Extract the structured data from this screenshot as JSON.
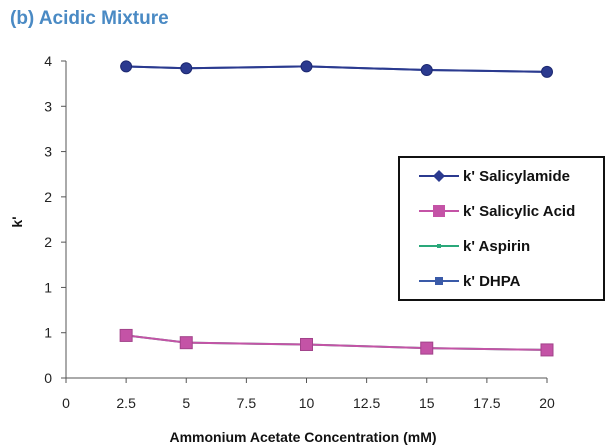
{
  "chart_data": {
    "type": "line",
    "title": "(b) Acidic Mixture",
    "xlabel": "Ammonium Acetate Concentration (mM)",
    "ylabel": "k'",
    "x_ticks": [
      "0",
      "2.5",
      "5",
      "7.5",
      "10",
      "12.5",
      "15",
      "17.5",
      "20"
    ],
    "y_tick_values": [
      0,
      0.5,
      1,
      1.5,
      2,
      2.5,
      3,
      3.5
    ],
    "y_ticks": [
      "0",
      "1",
      "1",
      "2",
      "2",
      "3",
      "3",
      "4"
    ],
    "xlim": [
      0,
      20
    ],
    "ylim": [
      0,
      3.5
    ],
    "grid": false,
    "legend_position": "right",
    "x": [
      2.5,
      5,
      10,
      15,
      20
    ],
    "series": [
      {
        "name": "k' Salicylamide",
        "values": [
          3.44,
          3.42,
          3.44,
          3.4,
          3.38
        ],
        "color": "#2b3a8f",
        "marker": "diamond"
      },
      {
        "name": "k' Salicylic Acid",
        "values": [
          0.47,
          0.39,
          0.37,
          0.33,
          0.31
        ],
        "color": "#c453a6",
        "marker": "square"
      },
      {
        "name": "k' Aspirin",
        "values": [
          0.47,
          0.39,
          0.37,
          0.33,
          0.31
        ],
        "color": "#2aa87a",
        "marker": "dot"
      },
      {
        "name": "k' DHPA",
        "values": [
          3.44,
          3.42,
          3.44,
          3.4,
          3.38
        ],
        "color": "#3a5aa8",
        "marker": "square"
      }
    ]
  }
}
